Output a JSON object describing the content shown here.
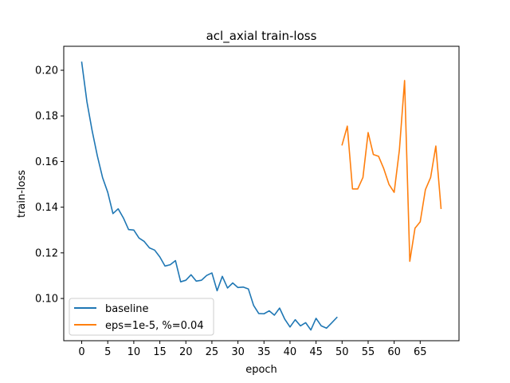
{
  "chart_data": {
    "type": "line",
    "title": "acl_axial train-loss",
    "xlabel": "epoch",
    "ylabel": "train-loss",
    "xlim": [
      -3.45,
      72.45
    ],
    "ylim": [
      0.0815,
      0.2105
    ],
    "xticks": [
      0,
      5,
      10,
      15,
      20,
      25,
      30,
      35,
      40,
      45,
      50,
      55,
      60,
      65
    ],
    "yticks": [
      0.1,
      0.12,
      0.14,
      0.16,
      0.18,
      0.2
    ],
    "ytick_labels": [
      "0.10",
      "0.12",
      "0.14",
      "0.16",
      "0.18",
      "0.20"
    ],
    "grid": false,
    "legend_position": "lower left",
    "series": [
      {
        "name": "baseline",
        "color": "#1f77b4",
        "x": [
          0,
          1,
          2,
          3,
          4,
          5,
          6,
          7,
          8,
          9,
          10,
          11,
          12,
          13,
          14,
          15,
          16,
          17,
          18,
          19,
          20,
          21,
          22,
          23,
          24,
          25,
          26,
          27,
          28,
          29,
          30,
          31,
          32,
          33,
          34,
          35,
          36,
          37,
          38,
          39,
          40,
          41,
          42,
          43,
          44,
          45,
          46,
          47,
          48,
          49
        ],
        "values": [
          0.2035,
          0.1862,
          0.1735,
          0.1625,
          0.153,
          0.1465,
          0.1372,
          0.1393,
          0.1353,
          0.1302,
          0.13,
          0.1265,
          0.125,
          0.1222,
          0.1212,
          0.1182,
          0.1142,
          0.1148,
          0.1166,
          0.1073,
          0.108,
          0.1104,
          0.1076,
          0.108,
          0.1101,
          0.1112,
          0.1034,
          0.1097,
          0.1046,
          0.1068,
          0.1048,
          0.105,
          0.1042,
          0.097,
          0.0934,
          0.0933,
          0.0946,
          0.0927,
          0.0958,
          0.0909,
          0.0875,
          0.0907,
          0.088,
          0.0894,
          0.0862,
          0.0913,
          0.088,
          0.087,
          0.0893,
          0.0917
        ]
      },
      {
        "name": "eps=1e-5, %=0.04",
        "color": "#ff7f0e",
        "x": [
          50,
          51,
          52,
          53,
          54,
          55,
          56,
          57,
          58,
          59,
          60,
          61,
          62,
          63,
          64,
          65,
          66,
          67,
          68,
          69
        ],
        "values": [
          0.1673,
          0.1755,
          0.148,
          0.148,
          0.153,
          0.1727,
          0.1631,
          0.1623,
          0.1569,
          0.15,
          0.1465,
          0.165,
          0.1955,
          0.1163,
          0.1308,
          0.1336,
          0.1477,
          0.153,
          0.1668,
          0.1395
        ]
      }
    ]
  }
}
